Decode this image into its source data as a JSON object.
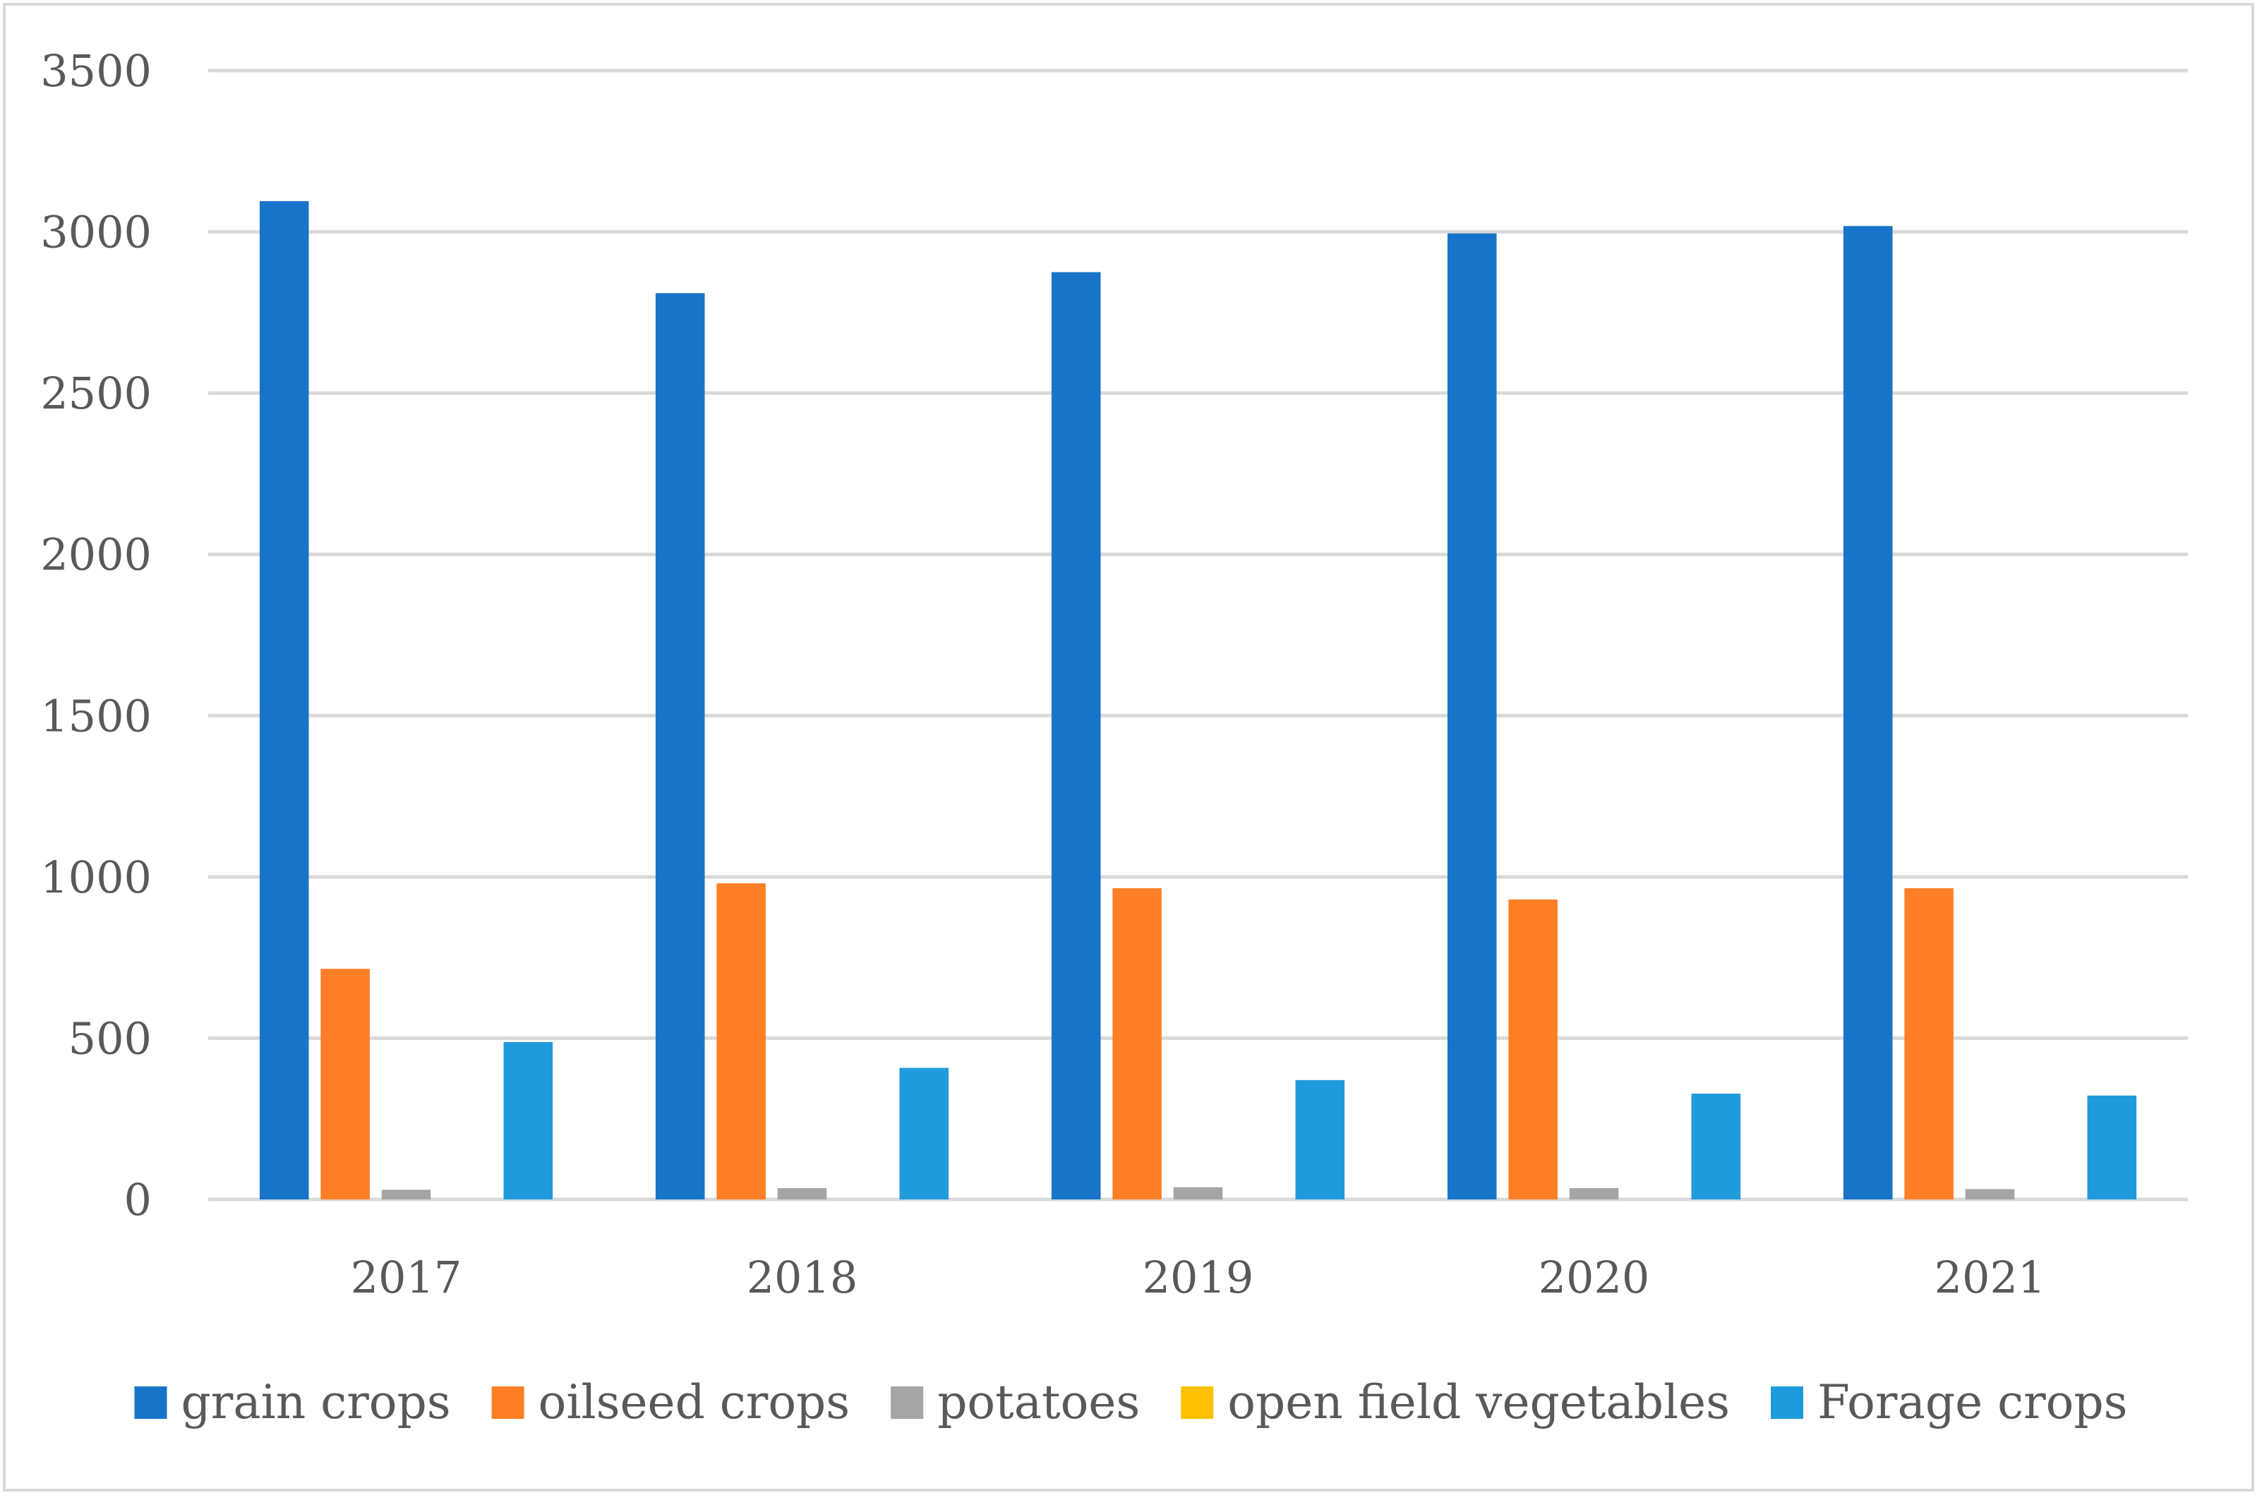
{
  "chart_data": {
    "type": "bar",
    "title": "",
    "xlabel": "",
    "ylabel": "",
    "categories": [
      "2017",
      "2018",
      "2019",
      "2020",
      "2021"
    ],
    "ylim": [
      0,
      3500
    ],
    "yticks": [
      0,
      500,
      1000,
      1500,
      2000,
      2500,
      3000,
      3500
    ],
    "yticks_labels": [
      "0",
      "500",
      "1000",
      "1500",
      "2000",
      "2500",
      "3000",
      "3500"
    ],
    "grid": true,
    "legend_position": "bottom",
    "series": [
      {
        "name": "grain crops",
        "color": "#1874c9",
        "values": [
          3095,
          2810,
          2875,
          2995,
          3018
        ]
      },
      {
        "name": "oilseed crops",
        "color": "#ff7f27",
        "values": [
          715,
          980,
          965,
          930,
          965
        ]
      },
      {
        "name": "potatoes",
        "color": "#a5a5a5",
        "values": [
          30,
          35,
          38,
          35,
          32
        ]
      },
      {
        "name": "open field vegetables",
        "color": "#ffc000",
        "values": [
          0,
          0,
          0,
          0,
          0
        ]
      },
      {
        "name": "Forage crops",
        "color": "#1f9bdc",
        "values": [
          488,
          408,
          370,
          328,
          322
        ]
      }
    ]
  }
}
